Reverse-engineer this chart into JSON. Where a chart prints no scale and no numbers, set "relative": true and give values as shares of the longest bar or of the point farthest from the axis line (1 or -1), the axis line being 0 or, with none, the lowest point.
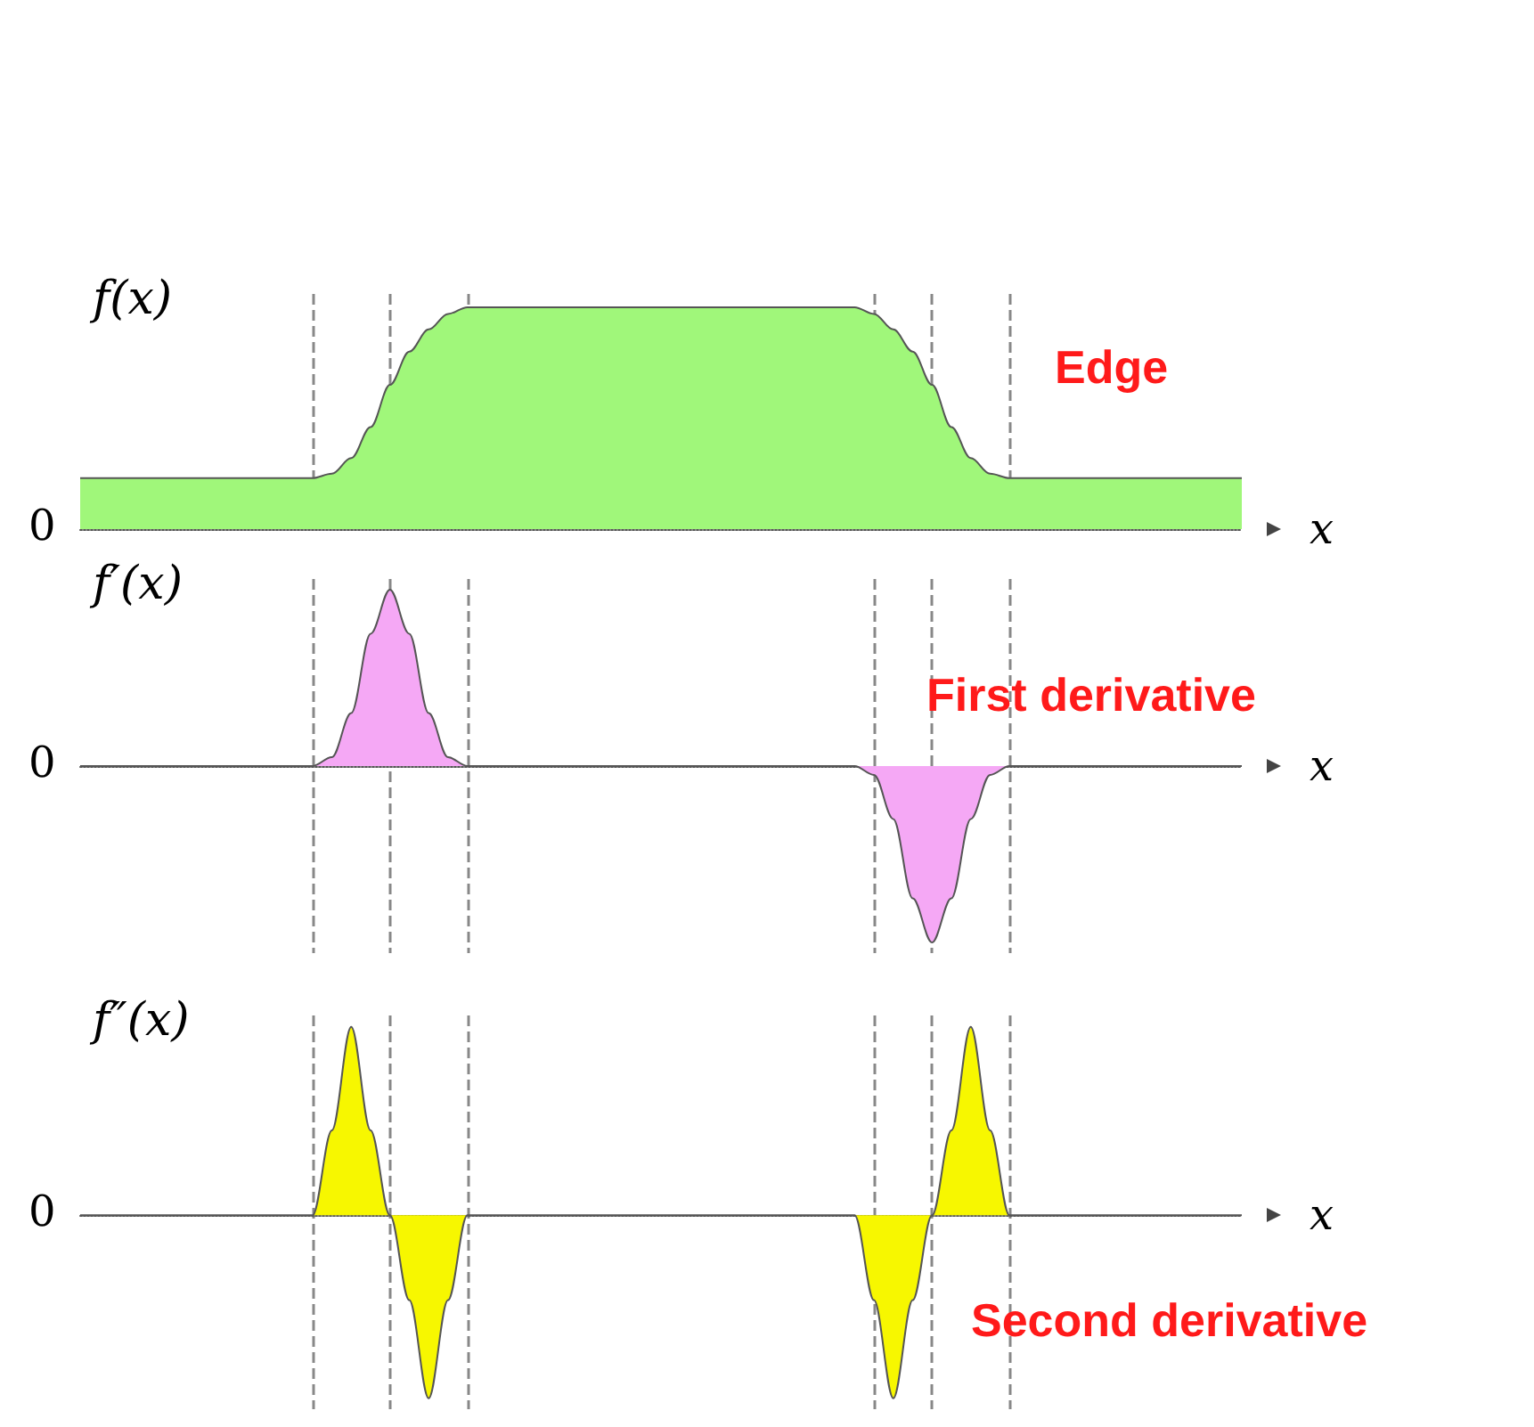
{
  "chart_data": [
    {
      "type": "area",
      "title": "Edge",
      "ylabel": "f(x)",
      "xlabel": "x",
      "relative": true,
      "grid": "x",
      "categories": [
        null,
        null,
        null,
        null,
        null,
        null,
        null,
        null,
        null,
        null,
        null,
        null,
        null,
        null,
        null,
        null,
        null,
        null,
        null,
        null,
        null,
        null,
        null,
        null,
        null,
        null,
        null,
        null,
        null,
        null,
        null,
        null,
        null,
        null,
        null,
        null,
        null,
        null,
        null,
        null,
        null,
        null,
        null,
        null,
        null,
        null,
        null,
        null,
        null,
        null,
        null,
        null,
        null,
        null,
        null,
        null,
        null,
        null,
        null,
        null,
        null
      ],
      "series": [
        {
          "color": "#a0f77a",
          "values": [
            0.23,
            0.23,
            0.23,
            0.23,
            0.23,
            0.23,
            0.23,
            0.23,
            0.23,
            0.23,
            0.23,
            0.23,
            0.23,
            0.25,
            0.32,
            0.46,
            0.65,
            0.8,
            0.9,
            0.97,
            1,
            1,
            1,
            1,
            1,
            1,
            1,
            1,
            1,
            1,
            1,
            1,
            1,
            1,
            1,
            1,
            1,
            1,
            1,
            1,
            1,
            0.97,
            0.9,
            0.8,
            0.65,
            0.46,
            0.32,
            0.25,
            0.23,
            0.23,
            0.23,
            0.23,
            0.23,
            0.23,
            0.23,
            0.23,
            0.23,
            0.23,
            0.23,
            0.23,
            0.23
          ]
        }
      ],
      "annotations": [
        "0"
      ]
    },
    {
      "type": "area",
      "title": "First derivative",
      "ylabel": "f′(x)",
      "xlabel": "x",
      "relative": true,
      "grid": "x",
      "categories": [
        null,
        null,
        null,
        null,
        null,
        null,
        null,
        null,
        null,
        null,
        null,
        null,
        null,
        null,
        null,
        null,
        null,
        null,
        null,
        null,
        null,
        null,
        null,
        null,
        null,
        null,
        null,
        null,
        null,
        null,
        null,
        null,
        null,
        null,
        null,
        null,
        null,
        null,
        null,
        null,
        null,
        null,
        null,
        null,
        null,
        null,
        null,
        null,
        null,
        null,
        null,
        null,
        null,
        null,
        null,
        null,
        null,
        null,
        null,
        null,
        null
      ],
      "series": [
        {
          "color": "#f5a8f5",
          "values": [
            0,
            0,
            0,
            0,
            0,
            0,
            0,
            0,
            0,
            0,
            0,
            0,
            0,
            0.05,
            0.3,
            0.75,
            1,
            0.75,
            0.3,
            0.05,
            0,
            0,
            0,
            0,
            0,
            0,
            0,
            0,
            0,
            0,
            0,
            0,
            0,
            0,
            0,
            0,
            0,
            0,
            0,
            0,
            0,
            -0.05,
            -0.3,
            -0.75,
            -1,
            -0.75,
            -0.3,
            -0.05,
            0,
            0,
            0,
            0,
            0,
            0,
            0,
            0,
            0,
            0,
            0,
            0,
            0
          ]
        }
      ],
      "annotations": [
        "0"
      ]
    },
    {
      "type": "area",
      "title": "Second derivative",
      "ylabel": "f″(x)",
      "xlabel": "x",
      "relative": true,
      "grid": "x",
      "categories": [
        null,
        null,
        null,
        null,
        null,
        null,
        null,
        null,
        null,
        null,
        null,
        null,
        null,
        null,
        null,
        null,
        null,
        null,
        null,
        null,
        null,
        null,
        null,
        null,
        null,
        null,
        null,
        null,
        null,
        null,
        null,
        null,
        null,
        null,
        null,
        null,
        null,
        null,
        null,
        null,
        null,
        null,
        null,
        null,
        null,
        null,
        null,
        null,
        null,
        null,
        null,
        null,
        null,
        null,
        null,
        null,
        null,
        null,
        null,
        null,
        null
      ],
      "series": [
        {
          "color": "#f7f700",
          "values": [
            0,
            0,
            0,
            0,
            0,
            0,
            0,
            0,
            0,
            0,
            0,
            0,
            0,
            0.45,
            1,
            0.45,
            0,
            -0.45,
            -0.97,
            -0.45,
            0,
            0,
            0,
            0,
            0,
            0,
            0,
            0,
            0,
            0,
            0,
            0,
            0,
            0,
            0,
            0,
            0,
            0,
            0,
            0,
            0,
            -0.45,
            -0.97,
            -0.45,
            0,
            0.45,
            1,
            0.45,
            0,
            0,
            0,
            0,
            0,
            0,
            0,
            0,
            0,
            0,
            0,
            0,
            0
          ]
        }
      ],
      "annotations": [
        "0"
      ]
    }
  ]
}
